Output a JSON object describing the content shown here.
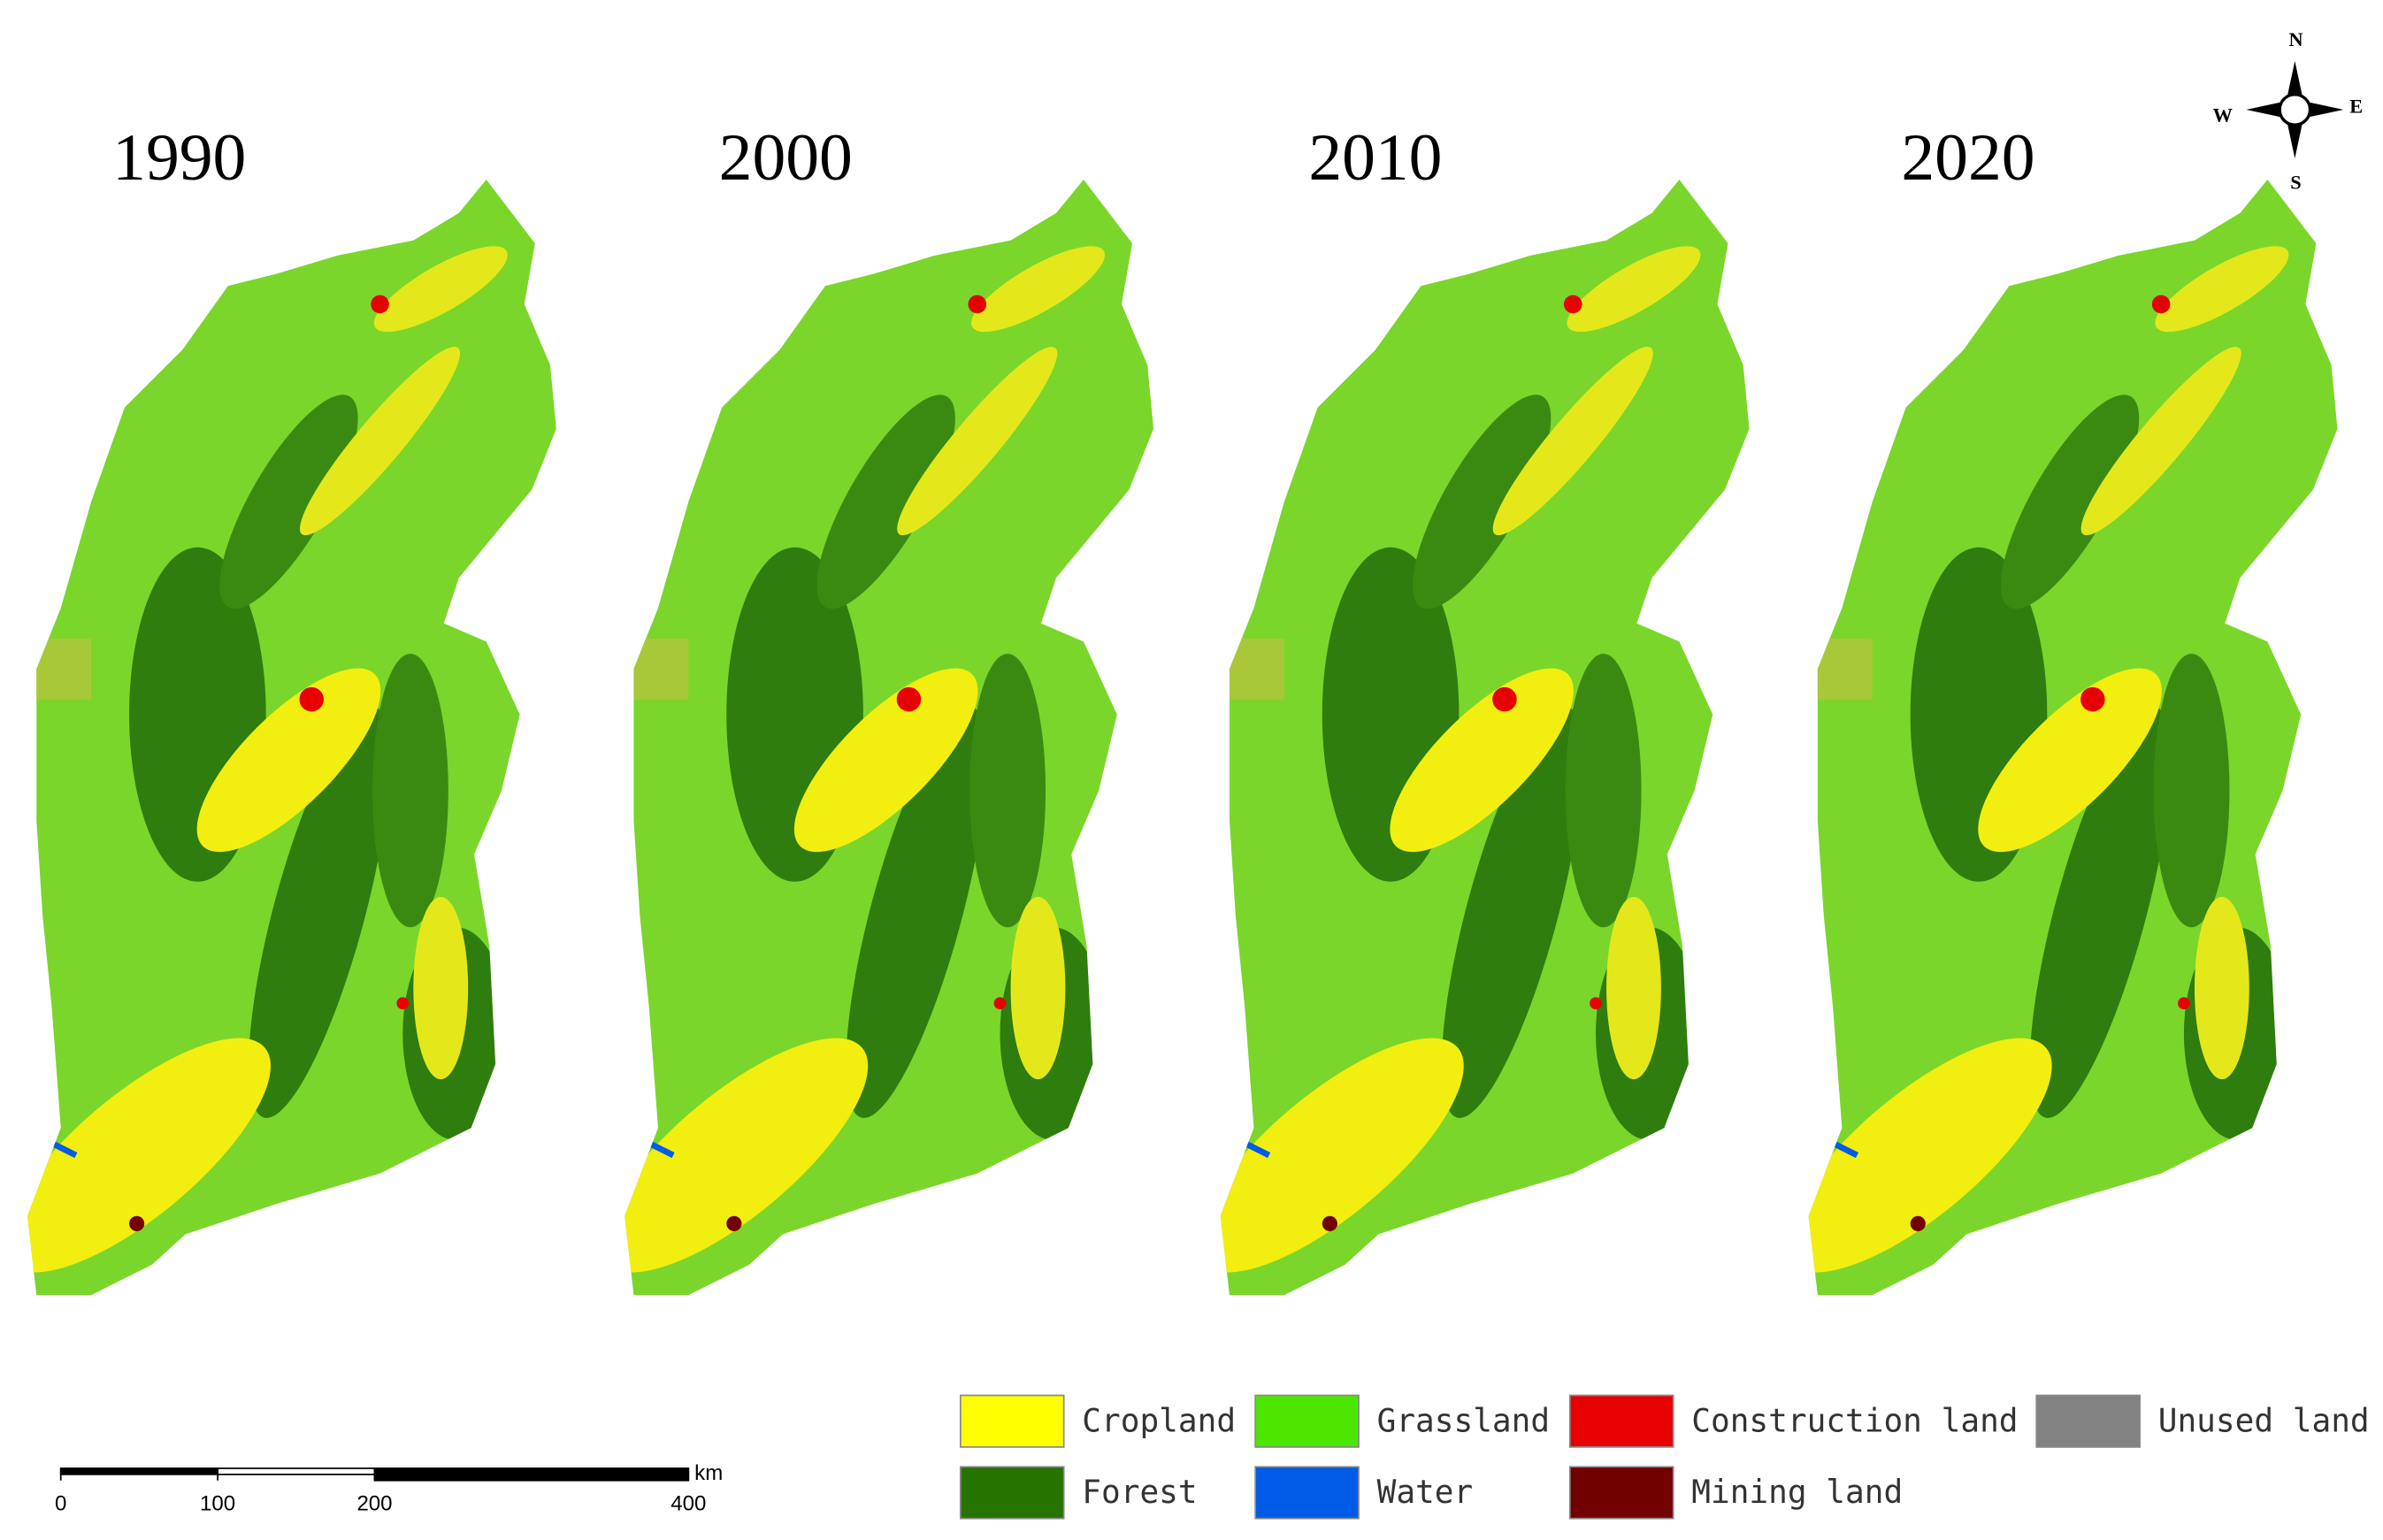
{
  "panels": [
    {
      "year": "1990"
    },
    {
      "year": "2000"
    },
    {
      "year": "2010"
    },
    {
      "year": "2020"
    }
  ],
  "legend": [
    {
      "label": "Cropland",
      "color": "#ffff00"
    },
    {
      "label": "Grassland",
      "color": "#4ce600"
    },
    {
      "label": "Construction land",
      "color": "#e60000"
    },
    {
      "label": "Unused land",
      "color": "#828282"
    },
    {
      "label": "Forest",
      "color": "#267300"
    },
    {
      "label": "Water",
      "color": "#005ce6"
    },
    {
      "label": "Mining land",
      "color": "#730000"
    }
  ],
  "scale_bar": {
    "ticks": [
      0,
      100,
      200,
      400
    ],
    "unit": "km"
  },
  "compass": {
    "n": "N",
    "s": "S",
    "e": "E",
    "w": "W"
  }
}
